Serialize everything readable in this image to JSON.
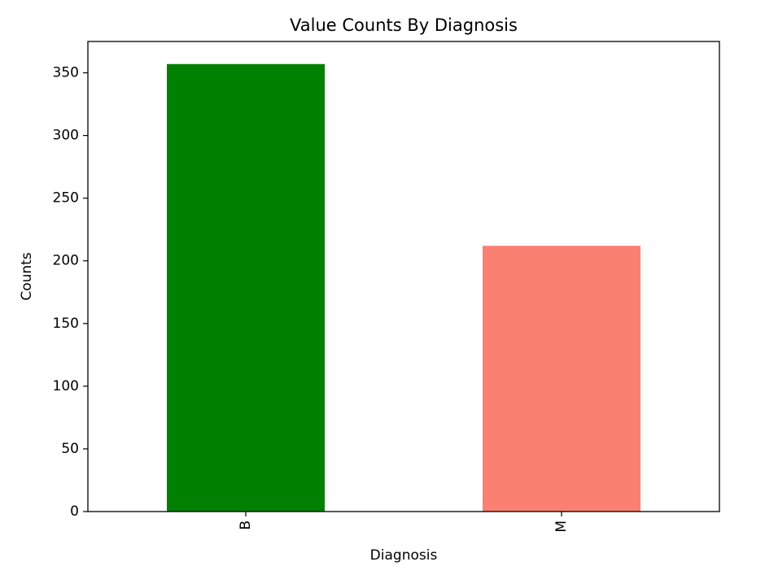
{
  "chart_data": {
    "type": "bar",
    "title": "Value Counts By Diagnosis",
    "xlabel": "Diagnosis",
    "ylabel": "Counts",
    "categories": [
      "B",
      "M"
    ],
    "values": [
      357,
      212
    ],
    "colors": [
      "#008000",
      "#fa8072"
    ],
    "ylim": [
      0,
      375
    ],
    "yticks": [
      0,
      50,
      100,
      150,
      200,
      250,
      300,
      350
    ],
    "ytick_labels": [
      "0",
      "50",
      "100",
      "150",
      "200",
      "250",
      "300",
      "350"
    ],
    "xtick_rotation": "vertical",
    "grid": false,
    "legend": "none"
  }
}
